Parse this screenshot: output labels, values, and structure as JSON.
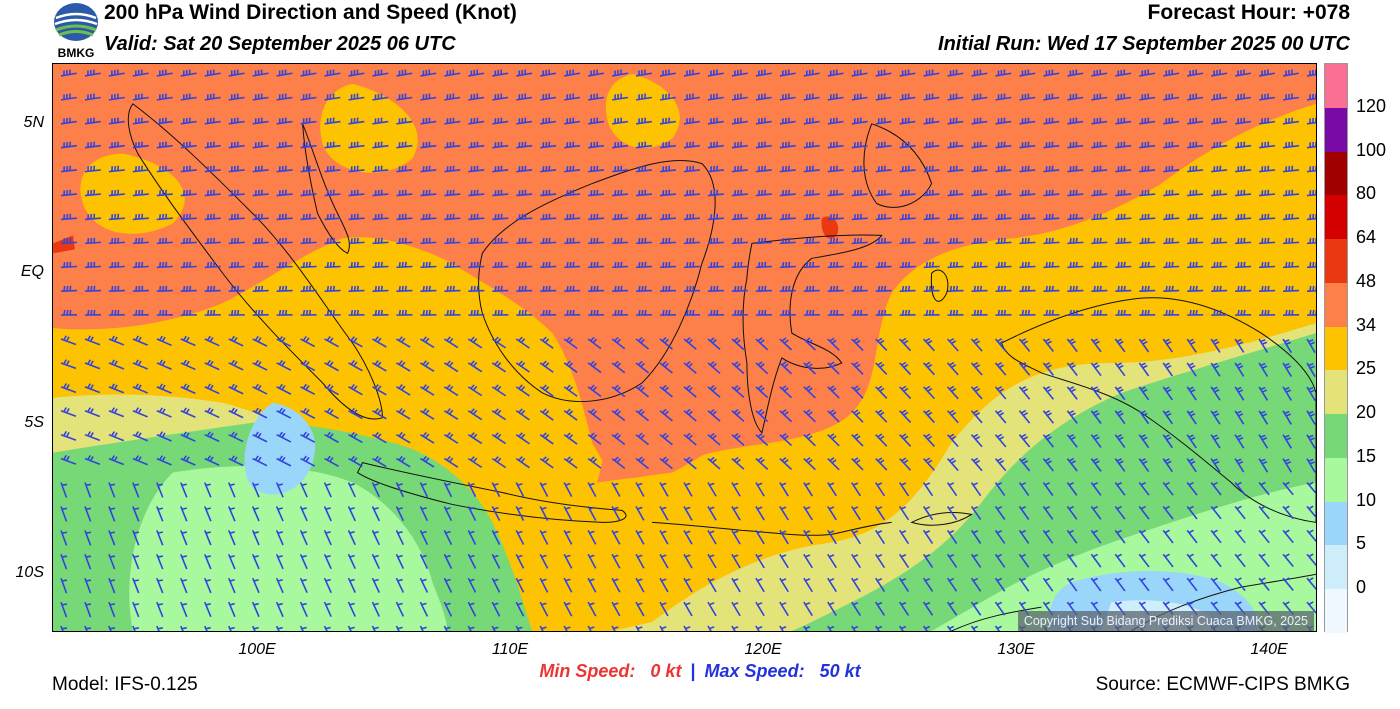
{
  "header": {
    "title": "200 hPa Wind Direction and Speed (Knot)",
    "valid": "Valid: Sat 20 September 2025 06 UTC",
    "forecast_hour": "Forecast Hour: +078",
    "initial_run": "Initial Run: Wed 17 September 2025 00 UTC",
    "logo_text": "BMKG"
  },
  "map": {
    "lat_labels": [
      "5N",
      "EQ",
      "5S",
      "10S"
    ],
    "lon_labels": [
      "100E",
      "110E",
      "120E",
      "130E",
      "140E"
    ],
    "copyright": "Copyright Sub Bidang Prediksi Cuaca BMKG, 2025"
  },
  "legend": {
    "labels": [
      "120",
      "100",
      "80",
      "64",
      "48",
      "34",
      "25",
      "20",
      "15",
      "10",
      "5",
      "0"
    ],
    "colors": [
      "#fa6f93",
      "#7a0aa6",
      "#a00000",
      "#d40000",
      "#ea3810",
      "#fd7f4a",
      "#fdc200",
      "#e3e37a",
      "#77d877",
      "#a8f89e",
      "#99d6fa",
      "#cfeefc",
      "#eef8fe"
    ]
  },
  "footer": {
    "min_label": "Min Speed:",
    "min_value": "0 kt",
    "separator": "|",
    "max_label": "Max Speed:",
    "max_value": "50 kt",
    "model": "Model: IFS-0.125",
    "source": "Source: ECMWF-CIPS BMKG"
  }
}
